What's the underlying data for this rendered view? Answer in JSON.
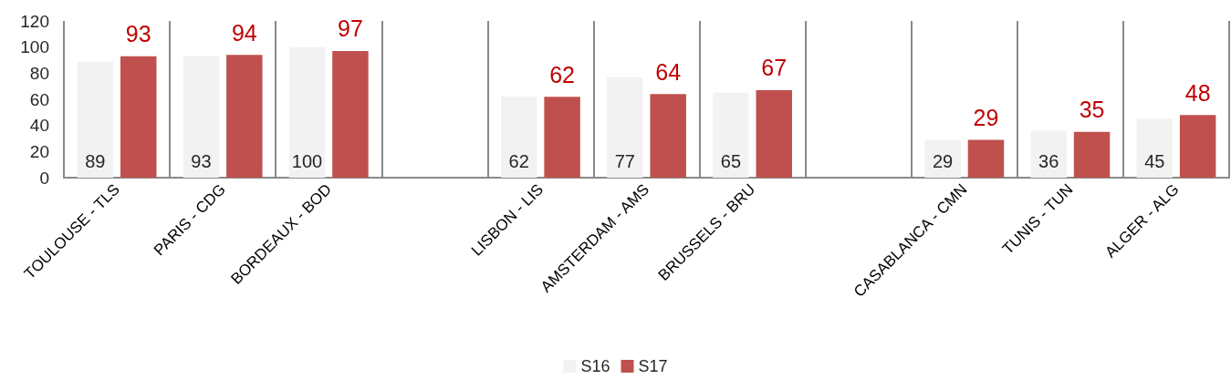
{
  "chart_data": {
    "type": "bar",
    "categories": [
      "TOULOUSE - TLS",
      "PARIS - CDG",
      "BORDEAUX - BOD",
      null,
      "LISBON - LIS",
      "AMSTERDAM - AMS",
      "BRUSSELS - BRU",
      null,
      "CASABLANCA - CMN",
      "TUNIS - TUN",
      "ALGER - ALG"
    ],
    "series": [
      {
        "name": "S16",
        "color": "#f2f2f2",
        "values": [
          89,
          93,
          100,
          null,
          62,
          77,
          65,
          null,
          29,
          36,
          45
        ]
      },
      {
        "name": "S17",
        "color": "#c0504d",
        "values": [
          93,
          94,
          97,
          null,
          62,
          64,
          67,
          null,
          29,
          35,
          48
        ]
      }
    ],
    "ylim": [
      0,
      120
    ],
    "yticks": [
      0,
      20,
      40,
      60,
      80,
      100,
      120
    ],
    "grid": "x",
    "legend": "bottom",
    "data_labels": true
  }
}
